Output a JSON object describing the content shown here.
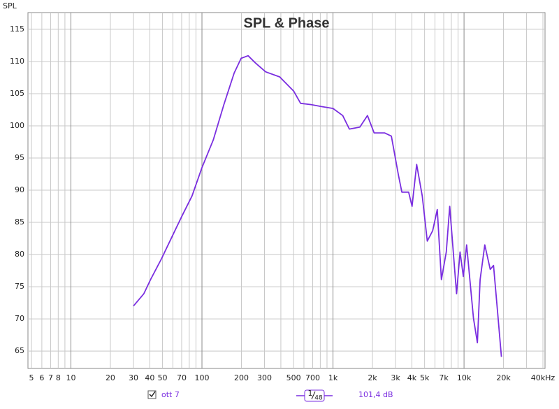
{
  "chart_data": {
    "type": "line",
    "title": "SPL & Phase",
    "y_label": "SPL",
    "log_x": true,
    "grid": true,
    "xlim": [
      4.7,
      41500
    ],
    "ylim": [
      62.3,
      117.6
    ],
    "xticks": [
      5,
      6,
      7,
      8,
      10,
      20,
      30,
      40,
      50,
      70,
      100,
      200,
      300,
      500,
      700,
      {
        "value": 1000,
        "label": "1k"
      },
      {
        "value": 2000,
        "label": "2k"
      },
      {
        "value": 3000,
        "label": "3k"
      },
      {
        "value": 4000,
        "label": "4k"
      },
      {
        "value": 5000,
        "label": "5k"
      },
      {
        "value": 7000,
        "label": "7k"
      },
      {
        "value": 10000,
        "label": "10k"
      },
      {
        "value": 20000,
        "label": "20k"
      },
      {
        "value": 40000,
        "label": "40kHz"
      }
    ],
    "x_minor_grid": [
      9,
      60,
      80,
      90,
      400,
      600,
      800,
      900,
      6000,
      8000,
      9000,
      30000
    ],
    "yticks": [
      65,
      70,
      75,
      80,
      85,
      90,
      95,
      100,
      105,
      110,
      115
    ],
    "x": [
      30,
      36,
      40.5,
      49,
      58.5,
      70,
      84,
      100,
      122,
      147,
      176,
      199,
      225,
      255,
      306,
      392,
      501,
      566,
      680,
      815,
      1000,
      1187,
      1334,
      1604,
      1832,
      2060,
      2474,
      2788,
      3152,
      3355,
      3775,
      4010,
      4350,
      4800,
      5240,
      5760,
      6250,
      6720,
      7320,
      7780,
      8770,
      9320,
      9880,
      10470,
      11800,
      12650,
      13270,
      14400,
      15850,
      16800,
      18000,
      19300
    ],
    "series": [
      {
        "name": "ott 7",
        "color": "#7a2ee0",
        "values": [
          72.0,
          73.9,
          76.1,
          79.3,
          82.6,
          85.9,
          89.1,
          93.5,
          97.8,
          103.3,
          108.2,
          110.5,
          110.9,
          109.8,
          108.4,
          107.6,
          105.4,
          103.5,
          103.3,
          103.0,
          102.7,
          101.6,
          99.5,
          99.8,
          101.6,
          98.9,
          98.9,
          98.4,
          92.4,
          89.7,
          89.7,
          87.5,
          94.0,
          89.1,
          82.1,
          83.7,
          87.0,
          76.1,
          80.4,
          87.5,
          73.9,
          80.4,
          76.6,
          81.5,
          70.1,
          66.3,
          76.1,
          81.5,
          77.7,
          78.3,
          71.2,
          64.1
        ]
      }
    ],
    "smoothing": {
      "numerator": "1",
      "denominator": "48"
    },
    "readout": "101,4 dB"
  }
}
